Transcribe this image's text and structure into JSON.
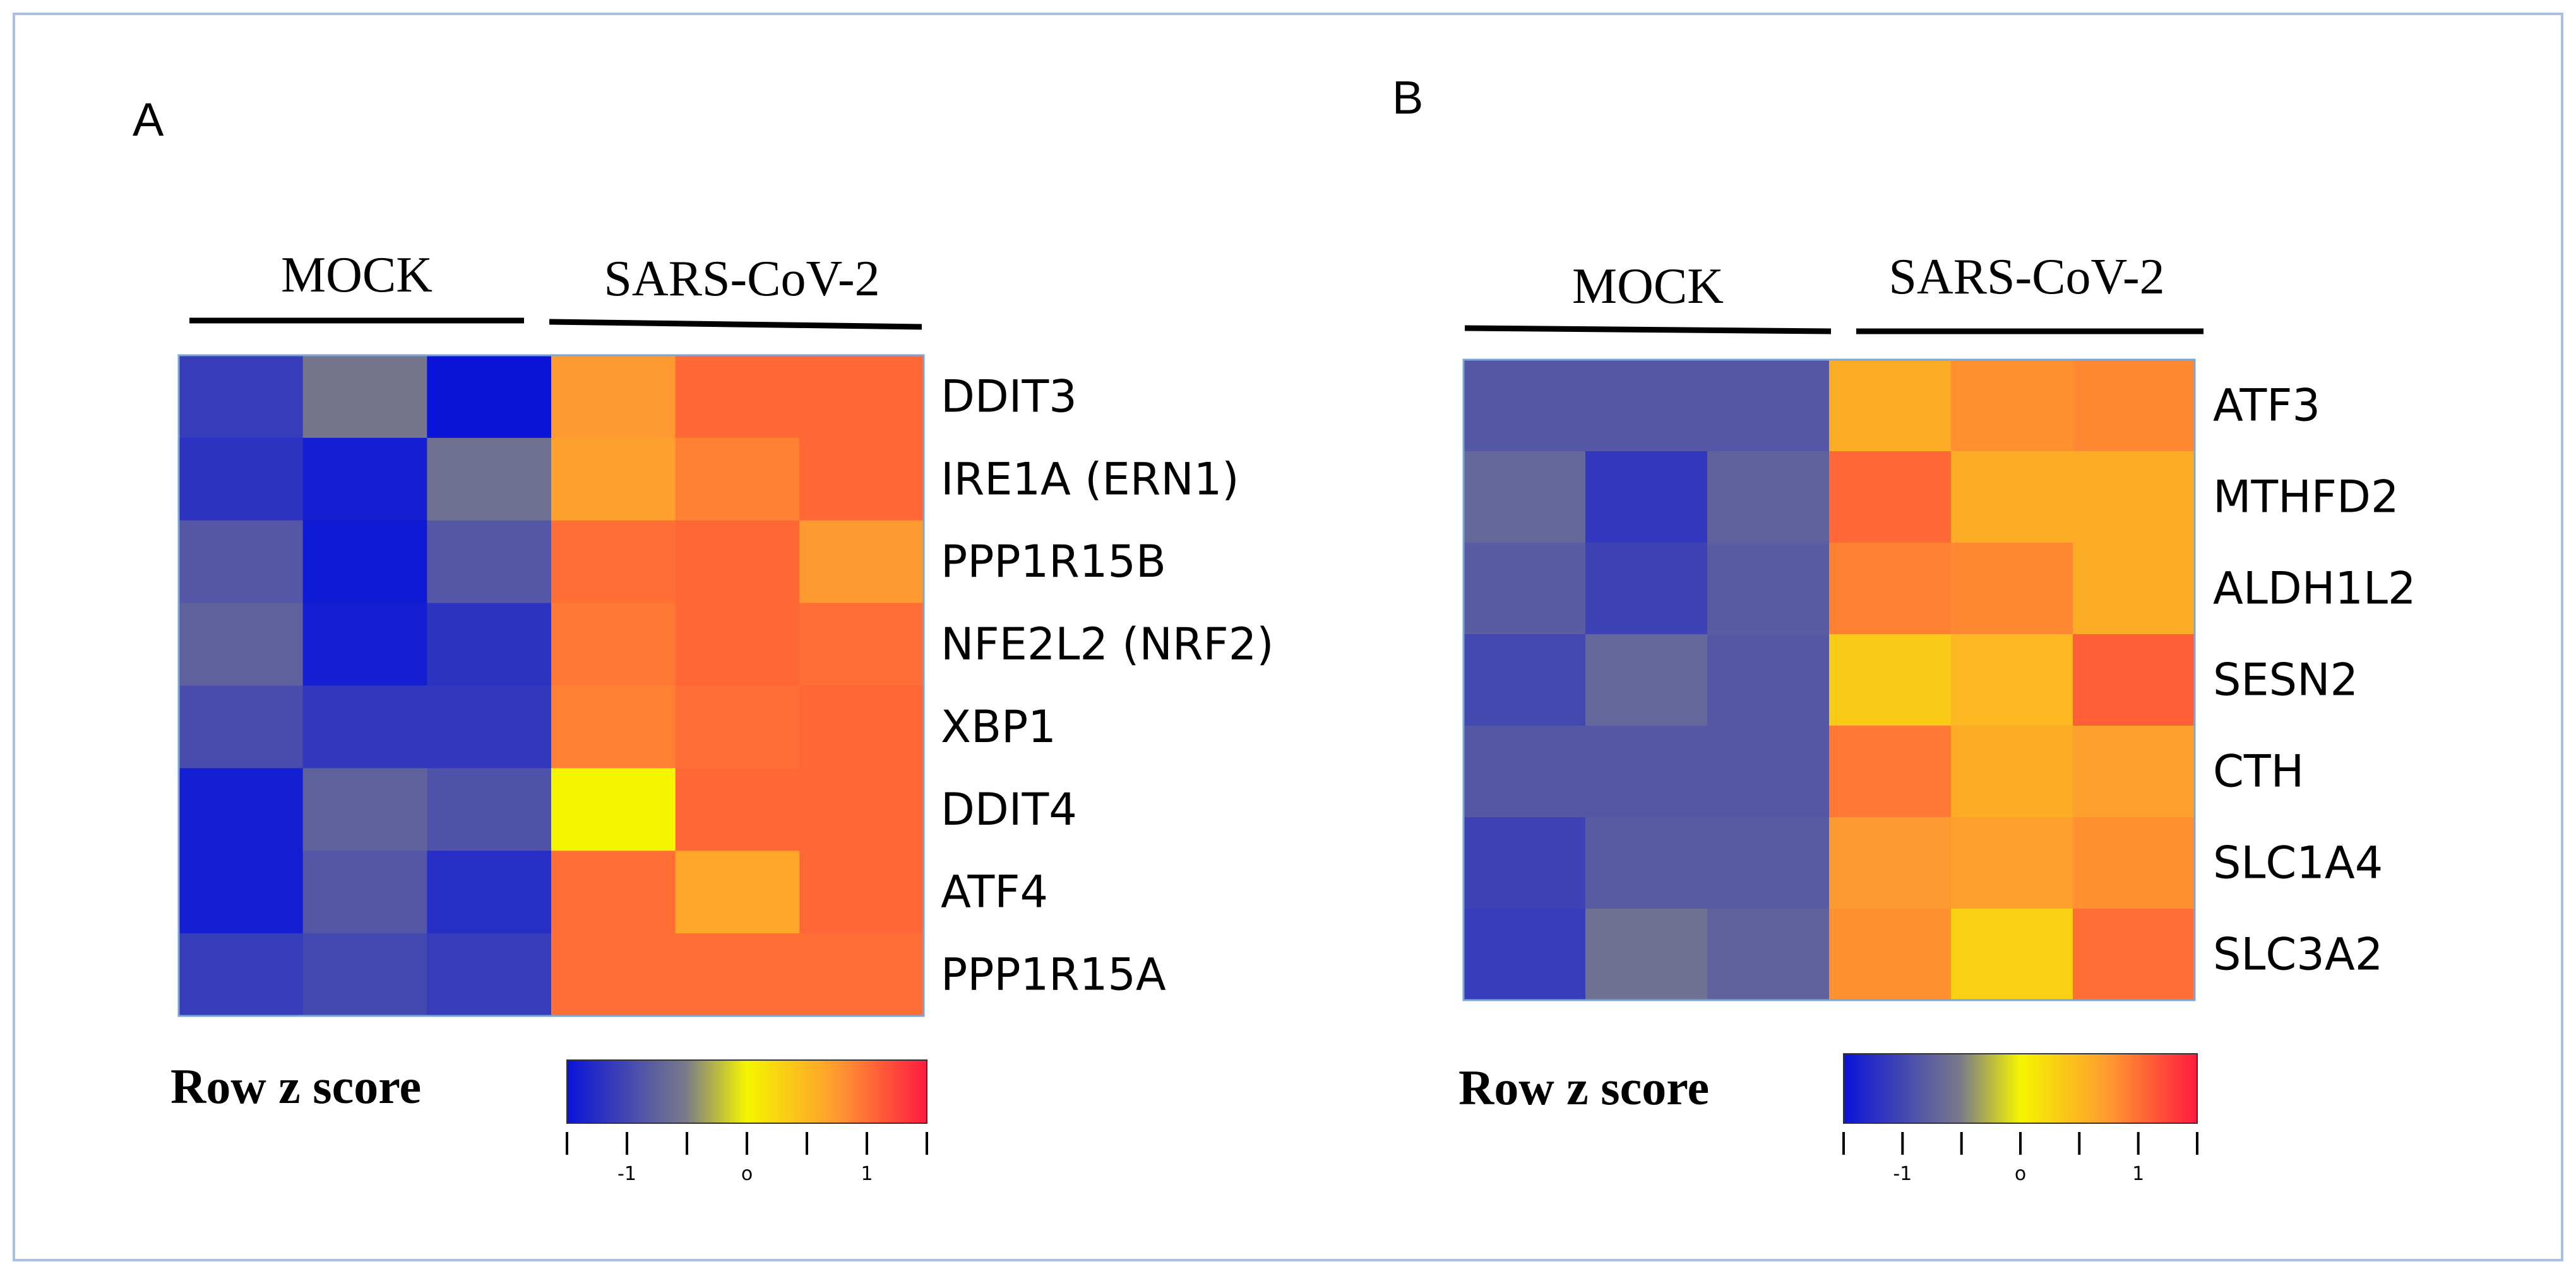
{
  "chart_data": [
    {
      "type": "heatmap",
      "panel": "A",
      "groups": [
        "MOCK",
        "SARS-CoV-2"
      ],
      "columns_per_group": 3,
      "rows": [
        "DDIT3",
        "IRE1A (ERN1)",
        "PPP1R15B",
        "NFE2L2 (NRF2)",
        "XBP1",
        "DDIT4",
        "ATF4",
        "PPP1R15A"
      ],
      "values": [
        [
          -1.1,
          -0.55,
          -1.5,
          0.75,
          1.05,
          1.05
        ],
        [
          -1.2,
          -1.4,
          -0.6,
          0.7,
          0.9,
          1.05
        ],
        [
          -0.85,
          -1.45,
          -0.85,
          1.0,
          1.05,
          0.75
        ],
        [
          -0.75,
          -1.4,
          -1.2,
          0.95,
          1.05,
          1.0
        ],
        [
          -0.95,
          -1.15,
          -1.15,
          0.9,
          1.0,
          1.05
        ],
        [
          -1.4,
          -0.75,
          -0.9,
          0.0,
          1.05,
          1.05
        ],
        [
          -1.4,
          -0.85,
          -1.25,
          1.0,
          0.65,
          1.05
        ],
        [
          -1.1,
          -1.0,
          -1.1,
          1.0,
          1.0,
          1.0
        ]
      ],
      "colorbar": {
        "title": "Row z score",
        "min": -1.5,
        "max": 1.5,
        "ticks": [
          -1,
          0,
          1
        ],
        "tick_labels": [
          "-1",
          "o",
          "1"
        ]
      }
    },
    {
      "type": "heatmap",
      "panel": "B",
      "groups": [
        "MOCK",
        "SARS-CoV-2"
      ],
      "columns_per_group": 3,
      "rows": [
        "ATF3",
        "MTHFD2",
        "ALDH1L2",
        "SESN2",
        "CTH",
        "SLC1A4",
        "SLC3A2"
      ],
      "values": [
        [
          -0.85,
          -0.85,
          -0.85,
          0.6,
          0.8,
          0.85
        ],
        [
          -0.7,
          -1.15,
          -0.75,
          1.05,
          0.6,
          0.6
        ],
        [
          -0.8,
          -1.05,
          -0.8,
          0.9,
          0.85,
          0.6
        ],
        [
          -1.0,
          -0.7,
          -0.85,
          0.35,
          0.5,
          1.1
        ],
        [
          -0.85,
          -0.85,
          -0.85,
          0.95,
          0.6,
          0.7
        ],
        [
          -1.05,
          -0.8,
          -0.8,
          0.75,
          0.7,
          0.8
        ],
        [
          -1.1,
          -0.6,
          -0.75,
          0.8,
          0.3,
          1.0
        ]
      ],
      "colorbar": {
        "title": "Row z score",
        "min": -1.5,
        "max": 1.5,
        "ticks": [
          -1,
          0,
          1
        ],
        "tick_labels": [
          "-1",
          "o",
          "1"
        ]
      }
    }
  ]
}
